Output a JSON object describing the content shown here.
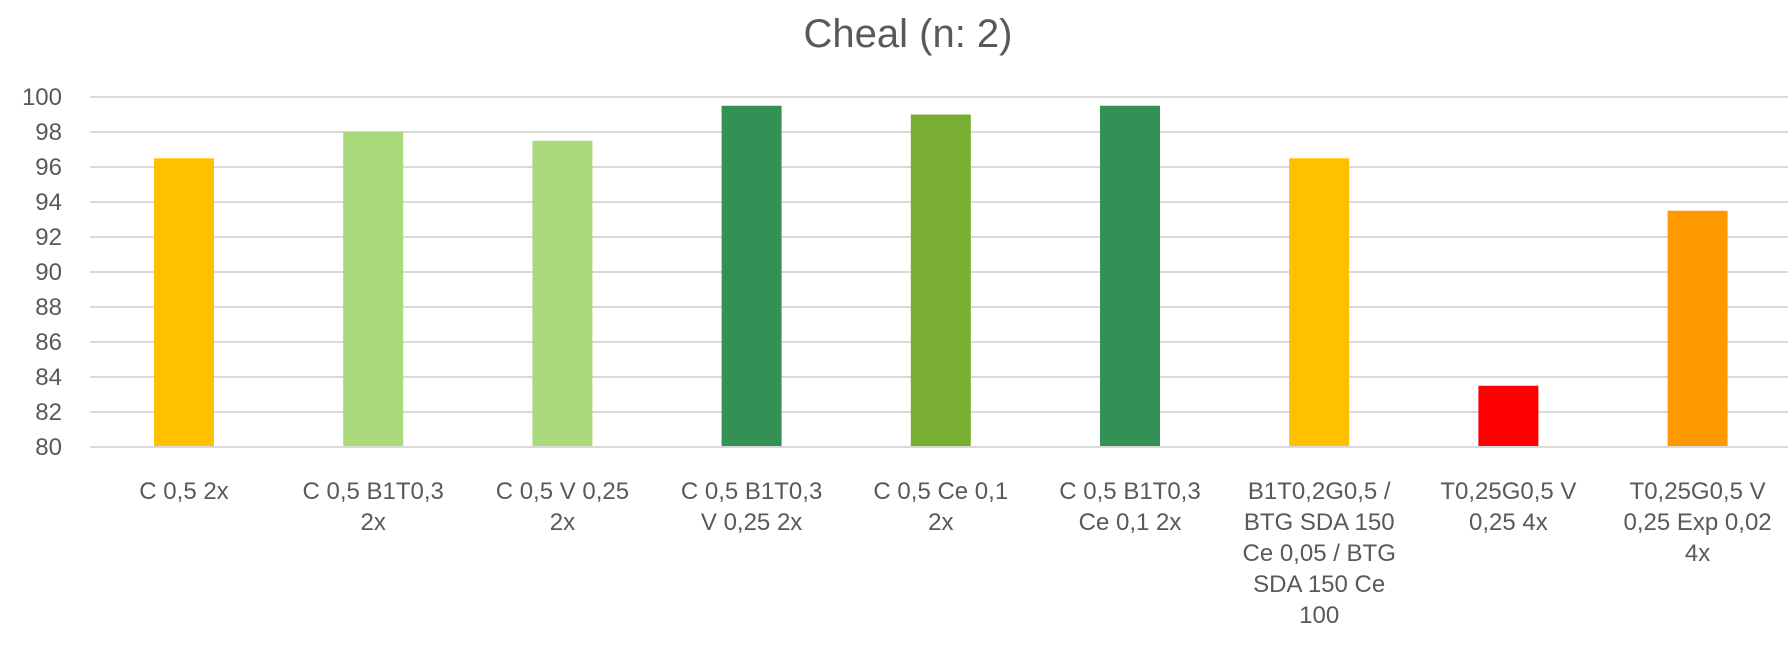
{
  "chart_data": {
    "type": "bar",
    "title": "Cheal (n: 2)",
    "xlabel": "",
    "ylabel": "",
    "ylim": [
      80,
      100
    ],
    "ytick_step": 2,
    "grid": true,
    "legend": "none",
    "categories": [
      "C 0,5 2x",
      "C 0,5 B1T0,3 2x",
      "C 0,5 V 0,25 2x",
      "C 0,5 B1T0,3 V 0,25 2x",
      "C 0,5 Ce 0,1 2x",
      "C 0,5 B1T0,3 Ce 0,1 2x",
      "B1T0,2G0,5 / BTG SDA 150 Ce 0,05 / BTG SDA 150 Ce 100",
      "T0,25G0,5 V 0,25 4x",
      "T0,25G0,5 V 0,25 Exp 0,02 4x"
    ],
    "category_label_lines": [
      [
        "C 0,5 2x"
      ],
      [
        "C 0,5 B1T0,3",
        "2x"
      ],
      [
        "C 0,5 V 0,25",
        "2x"
      ],
      [
        "C 0,5 B1T0,3",
        "V 0,25 2x"
      ],
      [
        "C 0,5 Ce 0,1",
        "2x"
      ],
      [
        "C 0,5 B1T0,3",
        "Ce 0,1 2x"
      ],
      [
        "B1T0,2G0,5 /",
        "BTG SDA 150",
        "Ce 0,05 / BTG",
        "SDA 150 Ce",
        "100"
      ],
      [
        "T0,25G0,5 V",
        "0,25 4x"
      ],
      [
        "T0,25G0,5 V",
        "0,25 Exp 0,02",
        "4x"
      ]
    ],
    "values": [
      96.5,
      98,
      97.5,
      99.5,
      99,
      99.5,
      96.5,
      83.5,
      93.5
    ],
    "colors": [
      "#FFC000",
      "#A9D97B",
      "#A9D97B",
      "#339155",
      "#78AF32",
      "#339155",
      "#FFC000",
      "#FF0000",
      "#FF9900"
    ]
  }
}
